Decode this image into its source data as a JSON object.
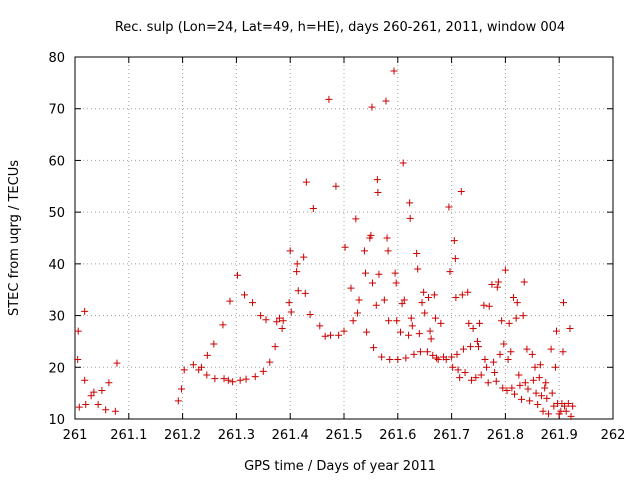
{
  "chart_data": {
    "type": "scatter",
    "title": "Rec. sulp (Lon=24, Lat=49, h=HE), days 260-261, 2011, window 004",
    "xlabel": "GPS time / Days of year 2011",
    "ylabel": "STEC from uqrg / TECUs",
    "xlim": [
      261,
      262
    ],
    "ylim": [
      10,
      80
    ],
    "grid": true,
    "marker": "+",
    "marker_color": "#cc0000",
    "x_ticks": [
      261,
      261.1,
      261.2,
      261.3,
      261.4,
      261.5,
      261.6,
      261.7,
      261.8,
      261.9,
      262
    ],
    "x_tick_labels": [
      "261",
      "261.1",
      "261.2",
      "261.3",
      "261.4",
      "261.5",
      "261.6",
      "261.7",
      "261.8",
      "261.9",
      "262"
    ],
    "y_ticks": [
      10,
      20,
      30,
      40,
      50,
      60,
      70,
      80
    ],
    "y_tick_labels": [
      "10",
      "20",
      "30",
      "40",
      "50",
      "60",
      "70",
      "80"
    ],
    "points": [
      [
        261.005,
        21.5
      ],
      [
        261.006,
        27.0
      ],
      [
        261.008,
        12.3
      ],
      [
        261.018,
        30.8
      ],
      [
        261.018,
        17.5
      ],
      [
        261.02,
        12.8
      ],
      [
        261.03,
        14.5
      ],
      [
        261.035,
        15.2
      ],
      [
        261.043,
        12.8
      ],
      [
        261.05,
        15.5
      ],
      [
        261.057,
        11.8
      ],
      [
        261.063,
        17.0
      ],
      [
        261.075,
        11.5
      ],
      [
        261.078,
        20.8
      ],
      [
        261.192,
        13.5
      ],
      [
        261.198,
        15.8
      ],
      [
        261.203,
        19.5
      ],
      [
        261.22,
        20.5
      ],
      [
        261.23,
        19.5
      ],
      [
        261.235,
        20.0
      ],
      [
        261.245,
        18.5
      ],
      [
        261.246,
        22.3
      ],
      [
        261.258,
        24.5
      ],
      [
        261.26,
        17.8
      ],
      [
        261.275,
        28.2
      ],
      [
        261.277,
        17.8
      ],
      [
        261.285,
        17.5
      ],
      [
        261.288,
        32.8
      ],
      [
        261.293,
        17.2
      ],
      [
        261.302,
        37.8
      ],
      [
        261.307,
        17.5
      ],
      [
        261.315,
        34.0
      ],
      [
        261.318,
        17.7
      ],
      [
        261.33,
        32.5
      ],
      [
        261.335,
        18.2
      ],
      [
        261.345,
        30.0
      ],
      [
        261.35,
        19.2
      ],
      [
        261.355,
        29.2
      ],
      [
        261.362,
        21.0
      ],
      [
        261.372,
        24.0
      ],
      [
        261.375,
        28.8
      ],
      [
        261.38,
        29.5
      ],
      [
        261.385,
        27.5
      ],
      [
        261.387,
        29.0
      ],
      [
        261.398,
        32.5
      ],
      [
        261.4,
        42.5
      ],
      [
        261.402,
        30.7
      ],
      [
        261.412,
        38.5
      ],
      [
        261.413,
        40.0
      ],
      [
        261.415,
        34.8
      ],
      [
        261.425,
        41.3
      ],
      [
        261.428,
        34.3
      ],
      [
        261.43,
        55.8
      ],
      [
        261.437,
        30.2
      ],
      [
        261.443,
        50.7
      ],
      [
        261.455,
        28.0
      ],
      [
        261.465,
        26.0
      ],
      [
        261.472,
        71.8
      ],
      [
        261.475,
        26.2
      ],
      [
        261.485,
        55.0
      ],
      [
        261.49,
        26.2
      ],
      [
        261.5,
        27.0
      ],
      [
        261.502,
        43.2
      ],
      [
        261.513,
        35.3
      ],
      [
        261.517,
        29.0
      ],
      [
        261.522,
        48.7
      ],
      [
        261.525,
        30.5
      ],
      [
        261.528,
        33.0
      ],
      [
        261.538,
        42.5
      ],
      [
        261.54,
        38.2
      ],
      [
        261.542,
        26.8
      ],
      [
        261.548,
        45.0
      ],
      [
        261.55,
        45.5
      ],
      [
        261.552,
        70.3
      ],
      [
        261.553,
        36.3
      ],
      [
        261.555,
        23.8
      ],
      [
        261.56,
        32.0
      ],
      [
        261.562,
        56.3
      ],
      [
        261.563,
        53.8
      ],
      [
        261.565,
        38.0
      ],
      [
        261.57,
        22.0
      ],
      [
        261.575,
        33.0
      ],
      [
        261.578,
        71.5
      ],
      [
        261.58,
        45.0
      ],
      [
        261.582,
        42.5
      ],
      [
        261.583,
        29.0
      ],
      [
        261.585,
        21.5
      ],
      [
        261.593,
        77.3
      ],
      [
        261.595,
        38.2
      ],
      [
        261.597,
        36.3
      ],
      [
        261.598,
        29.0
      ],
      [
        261.6,
        21.5
      ],
      [
        261.605,
        26.8
      ],
      [
        261.608,
        32.3
      ],
      [
        261.61,
        59.5
      ],
      [
        261.612,
        33.0
      ],
      [
        261.615,
        21.8
      ],
      [
        261.62,
        26.2
      ],
      [
        261.622,
        51.8
      ],
      [
        261.623,
        48.8
      ],
      [
        261.625,
        29.5
      ],
      [
        261.627,
        28.0
      ],
      [
        261.63,
        22.5
      ],
      [
        261.635,
        42.0
      ],
      [
        261.637,
        39.0
      ],
      [
        261.64,
        26.5
      ],
      [
        261.642,
        23.0
      ],
      [
        261.645,
        32.5
      ],
      [
        261.648,
        34.5
      ],
      [
        261.65,
        30.5
      ],
      [
        261.655,
        23.0
      ],
      [
        261.657,
        33.5
      ],
      [
        261.66,
        27.0
      ],
      [
        261.662,
        25.5
      ],
      [
        261.665,
        22.3
      ],
      [
        261.668,
        34.0
      ],
      [
        261.67,
        29.5
      ],
      [
        261.672,
        21.8
      ],
      [
        261.675,
        21.5
      ],
      [
        261.68,
        28.5
      ],
      [
        261.685,
        22.0
      ],
      [
        261.69,
        21.5
      ],
      [
        261.695,
        51.0
      ],
      [
        261.697,
        38.5
      ],
      [
        261.7,
        22.0
      ],
      [
        261.702,
        20.0
      ],
      [
        261.705,
        44.5
      ],
      [
        261.707,
        41.0
      ],
      [
        261.708,
        33.5
      ],
      [
        261.71,
        22.5
      ],
      [
        261.712,
        19.5
      ],
      [
        261.715,
        18.0
      ],
      [
        261.718,
        54.0
      ],
      [
        261.72,
        34.0
      ],
      [
        261.722,
        23.5
      ],
      [
        261.725,
        19.0
      ],
      [
        261.73,
        34.5
      ],
      [
        261.732,
        28.5
      ],
      [
        261.735,
        24.0
      ],
      [
        261.737,
        17.5
      ],
      [
        261.74,
        27.5
      ],
      [
        261.745,
        18.0
      ],
      [
        261.748,
        25.0
      ],
      [
        261.75,
        24.0
      ],
      [
        261.752,
        28.5
      ],
      [
        261.755,
        18.5
      ],
      [
        261.76,
        32.0
      ],
      [
        261.762,
        21.5
      ],
      [
        261.765,
        20.0
      ],
      [
        261.768,
        17.0
      ],
      [
        261.77,
        31.8
      ],
      [
        261.775,
        36.0
      ],
      [
        261.778,
        21.0
      ],
      [
        261.78,
        19.0
      ],
      [
        261.783,
        17.3
      ],
      [
        261.785,
        35.5
      ],
      [
        261.787,
        36.5
      ],
      [
        261.79,
        22.5
      ],
      [
        261.793,
        29.0
      ],
      [
        261.795,
        16.0
      ],
      [
        261.797,
        24.5
      ],
      [
        261.8,
        38.8
      ],
      [
        261.803,
        15.5
      ],
      [
        261.805,
        21.5
      ],
      [
        261.807,
        28.5
      ],
      [
        261.81,
        23.0
      ],
      [
        261.812,
        16.0
      ],
      [
        261.815,
        33.5
      ],
      [
        261.817,
        14.8
      ],
      [
        261.82,
        29.5
      ],
      [
        261.822,
        32.5
      ],
      [
        261.825,
        18.5
      ],
      [
        261.827,
        16.5
      ],
      [
        261.83,
        13.8
      ],
      [
        261.833,
        30.0
      ],
      [
        261.835,
        36.5
      ],
      [
        261.837,
        17.0
      ],
      [
        261.84,
        23.5
      ],
      [
        261.842,
        15.8
      ],
      [
        261.845,
        13.5
      ],
      [
        261.85,
        22.5
      ],
      [
        261.852,
        17.5
      ],
      [
        261.855,
        20.0
      ],
      [
        261.857,
        15.0
      ],
      [
        261.86,
        12.8
      ],
      [
        261.863,
        18.0
      ],
      [
        261.865,
        20.5
      ],
      [
        261.867,
        14.5
      ],
      [
        261.87,
        11.5
      ],
      [
        261.873,
        16.0
      ],
      [
        261.875,
        17.0
      ],
      [
        261.877,
        14.0
      ],
      [
        261.88,
        11.0
      ],
      [
        261.885,
        23.5
      ],
      [
        261.887,
        15.0
      ],
      [
        261.89,
        12.5
      ],
      [
        261.893,
        20.0
      ],
      [
        261.895,
        27.0
      ],
      [
        261.897,
        13.0
      ],
      [
        261.9,
        11.0
      ],
      [
        261.903,
        11.5
      ],
      [
        261.905,
        13.0
      ],
      [
        261.907,
        23.0
      ],
      [
        261.908,
        32.5
      ],
      [
        261.91,
        12.5
      ],
      [
        261.913,
        11.5
      ],
      [
        261.917,
        13.0
      ],
      [
        261.92,
        27.5
      ],
      [
        261.922,
        10.5
      ],
      [
        261.925,
        12.5
      ]
    ]
  }
}
